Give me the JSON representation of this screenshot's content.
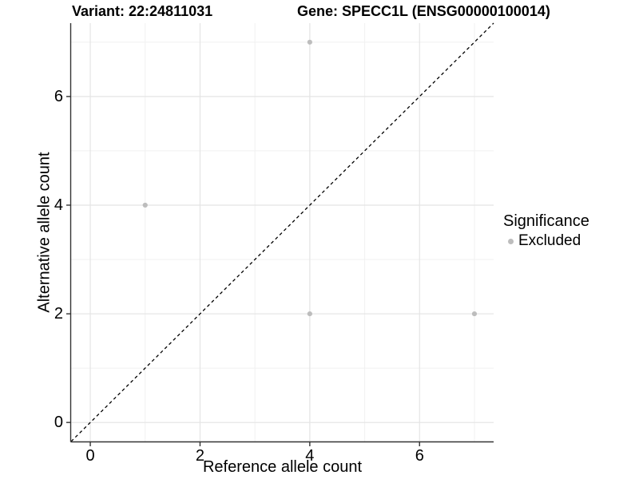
{
  "figure": {
    "title_left": "Variant: 22:24811031",
    "title_right": "Gene: SPECC1L (ENSG00000100014)"
  },
  "chart_data": {
    "type": "scatter",
    "title": "Variant: 22:24811031  /  Gene: SPECC1L (ENSG00000100014)",
    "xlabel": "Reference allele count",
    "ylabel": "Alternative allele count",
    "xlim": [
      -0.35,
      7.35
    ],
    "ylim": [
      -0.35,
      7.35
    ],
    "xticks": [
      0,
      2,
      4,
      6
    ],
    "yticks": [
      0,
      2,
      4,
      6
    ],
    "minor_gridlines_x": [
      1,
      3,
      5,
      7
    ],
    "minor_gridlines_y": [
      1,
      3,
      5,
      7
    ],
    "grid": true,
    "series": [
      {
        "name": "Excluded",
        "color": "#bdbdbd",
        "points": [
          {
            "x": 4,
            "y": 7
          },
          {
            "x": 1,
            "y": 4
          },
          {
            "x": 4,
            "y": 2
          },
          {
            "x": 7,
            "y": 2
          }
        ]
      }
    ],
    "reference_line": {
      "type": "identity",
      "style": "dashed",
      "color": "#000000"
    },
    "legend": {
      "title": "Significance",
      "position": "right",
      "items": [
        {
          "label": "Excluded",
          "color": "#bdbdbd"
        }
      ]
    }
  },
  "colors": {
    "background": "#ffffff",
    "major_grid": "#e4e4e4",
    "minor_grid": "#f1f1f1",
    "axis_line": "#333333",
    "tick_mark": "#333333",
    "text": "#000000"
  }
}
